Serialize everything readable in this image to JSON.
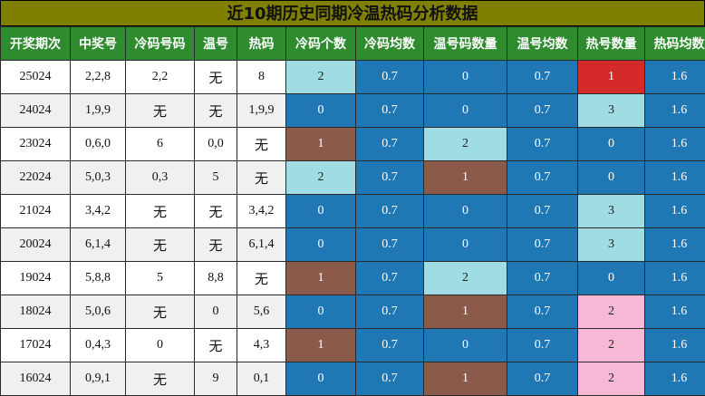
{
  "title": "近10期历史同期冷温热码分析数据",
  "headers": [
    "开奖期次",
    "中奖号",
    "冷码号码",
    "温号",
    "热码",
    "冷码个数",
    "冷码均数",
    "温号码数量",
    "温号均数",
    "热号数量",
    "热码均数"
  ],
  "colors": {
    "title_bg": "#7f7f00",
    "header_bg": "#2e8b2e",
    "dark_blue": "#1f78b4",
    "light_blue": "#9fdce4",
    "brown": "#8b5a4a",
    "red": "#d42a2a",
    "pink": "#f7b8d6"
  },
  "rows": [
    {
      "period": "25024",
      "winning": "2,2,8",
      "cold": "2,2",
      "warm": "无",
      "hot": "8",
      "cold_count": "2",
      "cold_avg": "0.7",
      "warm_count": "0",
      "warm_avg": "0.7",
      "hot_count": "1",
      "hot_avg": "1.6"
    },
    {
      "period": "24024",
      "winning": "1,9,9",
      "cold": "无",
      "warm": "无",
      "hot": "1,9,9",
      "cold_count": "0",
      "cold_avg": "0.7",
      "warm_count": "0",
      "warm_avg": "0.7",
      "hot_count": "3",
      "hot_avg": "1.6"
    },
    {
      "period": "23024",
      "winning": "0,6,0",
      "cold": "6",
      "warm": "0,0",
      "hot": "无",
      "cold_count": "1",
      "cold_avg": "0.7",
      "warm_count": "2",
      "warm_avg": "0.7",
      "hot_count": "0",
      "hot_avg": "1.6"
    },
    {
      "period": "22024",
      "winning": "5,0,3",
      "cold": "0,3",
      "warm": "5",
      "hot": "无",
      "cold_count": "2",
      "cold_avg": "0.7",
      "warm_count": "1",
      "warm_avg": "0.7",
      "hot_count": "0",
      "hot_avg": "1.6"
    },
    {
      "period": "21024",
      "winning": "3,4,2",
      "cold": "无",
      "warm": "无",
      "hot": "3,4,2",
      "cold_count": "0",
      "cold_avg": "0.7",
      "warm_count": "0",
      "warm_avg": "0.7",
      "hot_count": "3",
      "hot_avg": "1.6"
    },
    {
      "period": "20024",
      "winning": "6,1,4",
      "cold": "无",
      "warm": "无",
      "hot": "6,1,4",
      "cold_count": "0",
      "cold_avg": "0.7",
      "warm_count": "0",
      "warm_avg": "0.7",
      "hot_count": "3",
      "hot_avg": "1.6"
    },
    {
      "period": "19024",
      "winning": "5,8,8",
      "cold": "5",
      "warm": "8,8",
      "hot": "无",
      "cold_count": "1",
      "cold_avg": "0.7",
      "warm_count": "2",
      "warm_avg": "0.7",
      "hot_count": "0",
      "hot_avg": "1.6"
    },
    {
      "period": "18024",
      "winning": "5,0,6",
      "cold": "无",
      "warm": "0",
      "hot": "5,6",
      "cold_count": "0",
      "cold_avg": "0.7",
      "warm_count": "1",
      "warm_avg": "0.7",
      "hot_count": "2",
      "hot_avg": "1.6"
    },
    {
      "period": "17024",
      "winning": "0,4,3",
      "cold": "0",
      "warm": "无",
      "hot": "4,3",
      "cold_count": "1",
      "cold_avg": "0.7",
      "warm_count": "0",
      "warm_avg": "0.7",
      "hot_count": "2",
      "hot_avg": "1.6"
    },
    {
      "period": "16024",
      "winning": "0,9,1",
      "cold": "无",
      "warm": "9",
      "hot": "0,1",
      "cold_count": "0",
      "cold_avg": "0.7",
      "warm_count": "1",
      "warm_avg": "0.7",
      "hot_count": "2",
      "hot_avg": "1.6"
    }
  ]
}
